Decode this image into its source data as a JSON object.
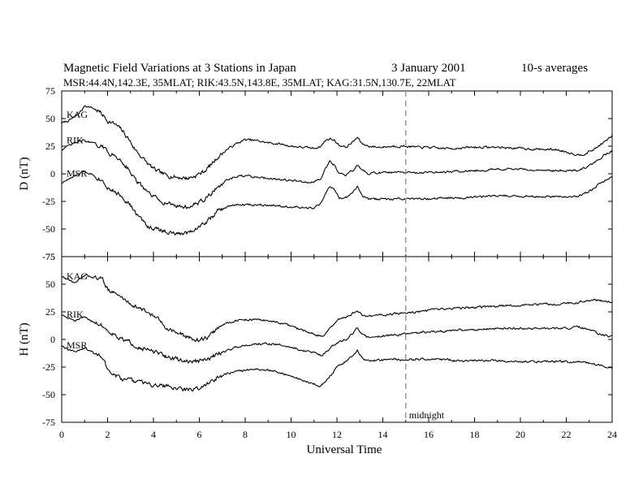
{
  "header": {
    "title": "Magnetic Field Variations at 3 Stations in Japan",
    "date": "3   January 2001",
    "averaging": "10-s averages",
    "stations_line": "MSR:44.4N,142.3E, 35MLAT;  RIK:43.5N,143.8E, 35MLAT;  KAG:31.5N,130.7E, 22MLAT"
  },
  "chart_data": [
    {
      "type": "line",
      "panel": "D",
      "ylabel": "D (nT)",
      "ylim": [
        -75,
        75
      ],
      "yticks": [
        75,
        50,
        25,
        0,
        -25,
        -50,
        -75
      ],
      "xlim": [
        0,
        24
      ],
      "series": [
        {
          "name": "KAG",
          "x": [
            0,
            0.3,
            0.6,
            0.9,
            1.0,
            1.3,
            1.6,
            1.8,
            2.0,
            2.3,
            2.6,
            2.9,
            3.2,
            3.5,
            3.8,
            4.1,
            4.5,
            5.0,
            5.5,
            5.8,
            6.2,
            6.5,
            6.8,
            7.2,
            7.6,
            8.0,
            8.5,
            9.0,
            9.5,
            10.0,
            10.5,
            11.0,
            11.3,
            11.5,
            11.7,
            11.9,
            12.1,
            12.4,
            12.7,
            12.9,
            13.1,
            13.4,
            13.8,
            14.5,
            15.0,
            15.5,
            16.0,
            16.5,
            17.0,
            18.0,
            19.0,
            20.0,
            21.0,
            21.5,
            22.0,
            22.5,
            22.8,
            23.2,
            23.6,
            24.0
          ],
          "y": [
            46,
            48,
            52,
            58,
            62,
            60,
            57,
            53,
            48,
            45,
            40,
            32,
            22,
            15,
            8,
            3,
            -1,
            -3,
            -4,
            -2,
            2,
            8,
            15,
            22,
            27,
            31,
            30,
            28,
            27,
            25,
            24,
            23,
            25,
            30,
            32,
            30,
            26,
            24,
            29,
            33,
            27,
            25,
            24,
            25,
            25,
            24,
            24,
            23,
            23,
            24,
            24,
            23,
            22,
            22,
            20,
            17,
            18,
            22,
            28,
            34
          ]
        },
        {
          "name": "RIK",
          "x": [
            0,
            0.3,
            0.6,
            0.9,
            1.0,
            1.3,
            1.6,
            1.8,
            2.0,
            2.3,
            2.6,
            2.9,
            3.2,
            3.5,
            3.8,
            4.1,
            4.5,
            5.0,
            5.5,
            5.8,
            6.2,
            6.5,
            6.8,
            7.2,
            7.6,
            8.0,
            8.5,
            9.0,
            9.5,
            10.0,
            10.5,
            11.0,
            11.3,
            11.5,
            11.7,
            11.9,
            12.1,
            12.4,
            12.7,
            12.9,
            13.1,
            13.4,
            13.8,
            14.5,
            15.0,
            15.5,
            16.0,
            16.5,
            17.0,
            18.0,
            19.0,
            20.0,
            21.0,
            21.5,
            22.0,
            22.5,
            22.8,
            23.2,
            23.6,
            24.0
          ],
          "y": [
            22,
            25,
            28,
            30,
            30,
            28,
            26,
            24,
            20,
            16,
            12,
            5,
            -5,
            -12,
            -18,
            -22,
            -26,
            -29,
            -30,
            -28,
            -24,
            -18,
            -12,
            -6,
            -3,
            -2,
            -3,
            -4,
            -5,
            -6,
            -7,
            -8,
            -4,
            5,
            12,
            8,
            0,
            -1,
            3,
            8,
            3,
            0,
            1,
            1,
            1,
            1,
            1,
            1,
            2,
            3,
            4,
            4,
            3,
            3,
            3,
            3,
            5,
            10,
            16,
            21
          ]
        },
        {
          "name": "MSR",
          "x": [
            0,
            0.3,
            0.6,
            0.9,
            1.0,
            1.3,
            1.6,
            1.8,
            2.0,
            2.3,
            2.6,
            2.9,
            3.2,
            3.5,
            3.8,
            4.1,
            4.5,
            5.0,
            5.5,
            5.8,
            6.2,
            6.5,
            6.8,
            7.2,
            7.6,
            8.0,
            8.5,
            9.0,
            9.5,
            10.0,
            10.5,
            11.0,
            11.3,
            11.5,
            11.7,
            11.9,
            12.1,
            12.4,
            12.7,
            12.9,
            13.1,
            13.4,
            13.8,
            14.5,
            15.0,
            15.5,
            16.0,
            16.5,
            17.0,
            18.0,
            19.0,
            20.0,
            21.0,
            21.5,
            22.0,
            22.5,
            22.8,
            23.2,
            23.6,
            24.0
          ],
          "y": [
            -8,
            -5,
            -2,
            1,
            2,
            0,
            -4,
            -6,
            -12,
            -16,
            -20,
            -26,
            -35,
            -42,
            -48,
            -50,
            -52,
            -55,
            -53,
            -50,
            -45,
            -40,
            -34,
            -30,
            -28,
            -28,
            -28,
            -28,
            -29,
            -30,
            -31,
            -31,
            -27,
            -18,
            -11,
            -15,
            -22,
            -22,
            -16,
            -12,
            -20,
            -23,
            -23,
            -23,
            -23,
            -23,
            -23,
            -22,
            -22,
            -21,
            -20,
            -20,
            -21,
            -21,
            -21,
            -20,
            -18,
            -13,
            -7,
            -3
          ]
        }
      ]
    },
    {
      "type": "line",
      "panel": "H",
      "ylabel": "H (nT)",
      "ylim": [
        -75,
        75
      ],
      "yticks": [
        75,
        50,
        25,
        0,
        -25,
        -50,
        -75
      ],
      "xlabel": "Universal Time",
      "xlim": [
        0,
        24
      ],
      "xticks": [
        0,
        2,
        4,
        6,
        8,
        10,
        12,
        14,
        16,
        18,
        20,
        22,
        24
      ],
      "series": [
        {
          "name": "KAG",
          "x": [
            0,
            0.3,
            0.6,
            0.9,
            1.0,
            1.3,
            1.6,
            1.8,
            2.0,
            2.3,
            2.6,
            2.9,
            3.2,
            3.5,
            3.8,
            4.1,
            4.5,
            5.0,
            5.5,
            5.8,
            6.2,
            6.5,
            6.8,
            7.2,
            7.6,
            8.0,
            8.5,
            9.0,
            9.5,
            10.0,
            10.5,
            11.0,
            11.3,
            11.5,
            11.7,
            11.9,
            12.1,
            12.4,
            12.7,
            12.9,
            13.1,
            13.4,
            13.8,
            14.5,
            15.0,
            15.5,
            16.0,
            16.5,
            17.0,
            18.0,
            19.0,
            20.0,
            21.0,
            21.5,
            22.0,
            22.5,
            22.8,
            23.2,
            23.6,
            24.0
          ],
          "y": [
            57,
            54,
            51,
            56,
            58,
            57,
            56,
            54,
            46,
            42,
            38,
            34,
            30,
            27,
            24,
            20,
            12,
            6,
            2,
            0,
            0,
            4,
            10,
            15,
            17,
            18,
            18,
            17,
            15,
            12,
            8,
            5,
            3,
            5,
            10,
            14,
            18,
            20,
            24,
            26,
            22,
            21,
            22,
            23,
            24,
            25,
            26,
            27,
            28,
            29,
            30,
            31,
            32,
            32,
            33,
            33,
            35,
            36,
            35,
            34
          ]
        },
        {
          "name": "RIK",
          "x": [
            0,
            0.3,
            0.6,
            0.9,
            1.0,
            1.3,
            1.6,
            1.8,
            2.0,
            2.3,
            2.6,
            2.9,
            3.2,
            3.5,
            3.8,
            4.1,
            4.5,
            5.0,
            5.5,
            5.8,
            6.2,
            6.5,
            6.8,
            7.2,
            7.6,
            8.0,
            8.5,
            9.0,
            9.5,
            10.0,
            10.5,
            11.0,
            11.3,
            11.5,
            11.7,
            11.9,
            12.1,
            12.4,
            12.7,
            12.9,
            13.1,
            13.4,
            13.8,
            14.5,
            15.0,
            15.5,
            16.0,
            16.5,
            17.0,
            18.0,
            19.0,
            20.0,
            21.0,
            21.5,
            22.0,
            22.5,
            22.8,
            23.2,
            23.6,
            24.0
          ],
          "y": [
            22,
            19,
            17,
            19,
            20,
            17,
            14,
            12,
            8,
            5,
            0,
            -2,
            -5,
            -8,
            -10,
            -12,
            -15,
            -18,
            -20,
            -20,
            -19,
            -17,
            -13,
            -10,
            -7,
            -5,
            -4,
            -4,
            -5,
            -7,
            -10,
            -12,
            -14,
            -12,
            -8,
            -5,
            -2,
            0,
            6,
            11,
            4,
            2,
            3,
            4,
            5,
            6,
            7,
            7,
            8,
            9,
            10,
            10,
            10,
            10,
            10,
            11,
            10,
            7,
            4,
            2
          ]
        },
        {
          "name": "MSR",
          "x": [
            0,
            0.3,
            0.6,
            0.9,
            1.0,
            1.3,
            1.6,
            1.8,
            2.0,
            2.3,
            2.6,
            2.9,
            3.2,
            3.5,
            3.8,
            4.1,
            4.5,
            5.0,
            5.5,
            5.8,
            6.2,
            6.5,
            6.8,
            7.2,
            7.6,
            8.0,
            8.5,
            9.0,
            9.5,
            10.0,
            10.5,
            11.0,
            11.3,
            11.5,
            11.7,
            11.9,
            12.1,
            12.4,
            12.7,
            12.9,
            13.1,
            13.4,
            13.8,
            14.5,
            15.0,
            15.5,
            16.0,
            16.5,
            17.0,
            18.0,
            19.0,
            20.0,
            21.0,
            21.5,
            22.0,
            22.5,
            22.8,
            23.2,
            23.6,
            24.0
          ],
          "y": [
            -5,
            -9,
            -11,
            -9,
            -8,
            -11,
            -14,
            -16,
            -28,
            -32,
            -36,
            -37,
            -38,
            -39,
            -40,
            -41,
            -42,
            -44,
            -46,
            -45,
            -42,
            -38,
            -34,
            -31,
            -29,
            -28,
            -27,
            -28,
            -30,
            -33,
            -37,
            -40,
            -42,
            -38,
            -33,
            -28,
            -22,
            -20,
            -14,
            -10,
            -17,
            -19,
            -19,
            -18,
            -18,
            -18,
            -18,
            -18,
            -19,
            -19,
            -19,
            -20,
            -20,
            -20,
            -20,
            -20,
            -21,
            -22,
            -24,
            -26
          ]
        }
      ]
    }
  ],
  "annotation": {
    "x": 15,
    "label": "midnight"
  },
  "colors": {
    "line": "#000000",
    "marker_line": "#999999",
    "background": "#ffffff"
  }
}
